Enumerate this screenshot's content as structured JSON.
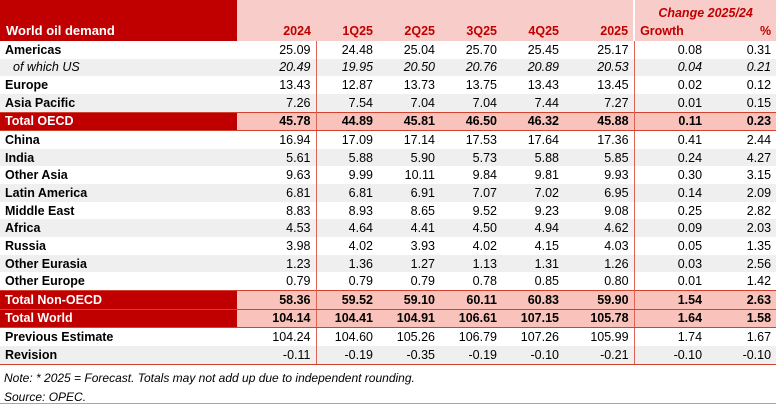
{
  "table": {
    "title": "World oil demand",
    "change_header": "Change 2025/24",
    "columns": [
      "2024",
      "1Q25",
      "2Q25",
      "3Q25",
      "4Q25",
      "2025",
      "Growth",
      "%"
    ],
    "rows": [
      {
        "label": "Americas",
        "type": "data",
        "values": [
          "25.09",
          "24.48",
          "25.04",
          "25.70",
          "25.45",
          "25.17",
          "0.08",
          "0.31"
        ]
      },
      {
        "label": "of which US",
        "type": "sub",
        "values": [
          "20.49",
          "19.95",
          "20.50",
          "20.76",
          "20.89",
          "20.53",
          "0.04",
          "0.21"
        ]
      },
      {
        "label": "Europe",
        "type": "data",
        "values": [
          "13.43",
          "12.87",
          "13.73",
          "13.75",
          "13.43",
          "13.45",
          "0.02",
          "0.12"
        ]
      },
      {
        "label": "Asia Pacific",
        "type": "data",
        "values": [
          "7.26",
          "7.54",
          "7.04",
          "7.04",
          "7.44",
          "7.27",
          "0.01",
          "0.15"
        ]
      },
      {
        "label": "Total OECD",
        "type": "total",
        "values": [
          "45.78",
          "44.89",
          "45.81",
          "46.50",
          "46.32",
          "45.88",
          "0.11",
          "0.23"
        ]
      },
      {
        "label": "China",
        "type": "data",
        "values": [
          "16.94",
          "17.09",
          "17.14",
          "17.53",
          "17.64",
          "17.36",
          "0.41",
          "2.44"
        ]
      },
      {
        "label": "India",
        "type": "data",
        "values": [
          "5.61",
          "5.88",
          "5.90",
          "5.73",
          "5.88",
          "5.85",
          "0.24",
          "4.27"
        ]
      },
      {
        "label": "Other Asia",
        "type": "data",
        "values": [
          "9.63",
          "9.99",
          "10.11",
          "9.84",
          "9.81",
          "9.93",
          "0.30",
          "3.15"
        ]
      },
      {
        "label": "Latin America",
        "type": "data",
        "values": [
          "6.81",
          "6.81",
          "6.91",
          "7.07",
          "7.02",
          "6.95",
          "0.14",
          "2.09"
        ]
      },
      {
        "label": "Middle East",
        "type": "data",
        "values": [
          "8.83",
          "8.93",
          "8.65",
          "9.52",
          "9.23",
          "9.08",
          "0.25",
          "2.82"
        ]
      },
      {
        "label": "Africa",
        "type": "data",
        "values": [
          "4.53",
          "4.64",
          "4.41",
          "4.50",
          "4.94",
          "4.62",
          "0.09",
          "2.03"
        ]
      },
      {
        "label": "Russia",
        "type": "data",
        "values": [
          "3.98",
          "4.02",
          "3.93",
          "4.02",
          "4.15",
          "4.03",
          "0.05",
          "1.35"
        ]
      },
      {
        "label": "Other Eurasia",
        "type": "data",
        "values": [
          "1.23",
          "1.36",
          "1.27",
          "1.13",
          "1.31",
          "1.26",
          "0.03",
          "2.56"
        ]
      },
      {
        "label": "Other Europe",
        "type": "data",
        "values": [
          "0.79",
          "0.79",
          "0.79",
          "0.78",
          "0.85",
          "0.80",
          "0.01",
          "1.42"
        ]
      },
      {
        "label": "Total Non-OECD",
        "type": "total",
        "values": [
          "58.36",
          "59.52",
          "59.10",
          "60.11",
          "60.83",
          "59.90",
          "1.54",
          "2.63"
        ]
      },
      {
        "label": "Total World",
        "type": "total",
        "values": [
          "104.14",
          "104.41",
          "104.91",
          "106.61",
          "107.15",
          "105.78",
          "1.64",
          "1.58"
        ]
      },
      {
        "label": "Previous Estimate",
        "type": "data",
        "values": [
          "104.24",
          "104.60",
          "105.26",
          "106.79",
          "107.26",
          "105.99",
          "1.74",
          "1.67"
        ]
      },
      {
        "label": "Revision",
        "type": "data",
        "values": [
          "-0.11",
          "-0.19",
          "-0.35",
          "-0.19",
          "-0.10",
          "-0.21",
          "-0.10",
          "-0.10"
        ]
      }
    ],
    "notes": [
      "Note: * 2025 = Forecast. Totals may not add up due to independent rounding.",
      "Source: OPEC."
    ]
  },
  "colors": {
    "dark_red": "#C00000",
    "header_pink": "#F8CDC9",
    "total_row_pink": "#F9C3BB",
    "stripe_gray": "#EFEFEF",
    "separator_red": "#DD6455"
  }
}
